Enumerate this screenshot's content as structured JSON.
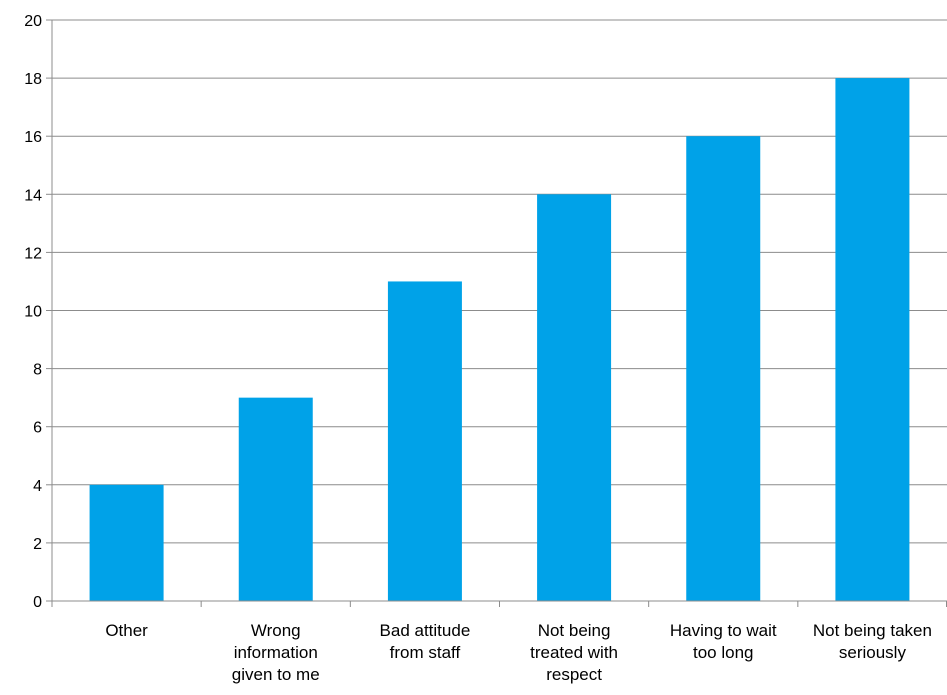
{
  "chart_data": {
    "type": "bar",
    "categories": [
      [
        "Other"
      ],
      [
        "Wrong",
        "information",
        "given to me"
      ],
      [
        "Bad attitude",
        "from staff"
      ],
      [
        "Not being",
        "treated with",
        "respect"
      ],
      [
        "Having to wait",
        "too long"
      ],
      [
        "Not being taken",
        "seriously"
      ]
    ],
    "values": [
      4,
      7,
      11,
      14,
      16,
      18
    ],
    "ylim": [
      0,
      20
    ],
    "yticks": [
      0,
      2,
      4,
      6,
      8,
      10,
      12,
      14,
      16,
      18,
      20
    ],
    "grid": true,
    "legend": "none",
    "colors": {
      "bar": "#00a2e8",
      "grid": "#8c8c8c",
      "axis": "#8c8c8c"
    }
  }
}
